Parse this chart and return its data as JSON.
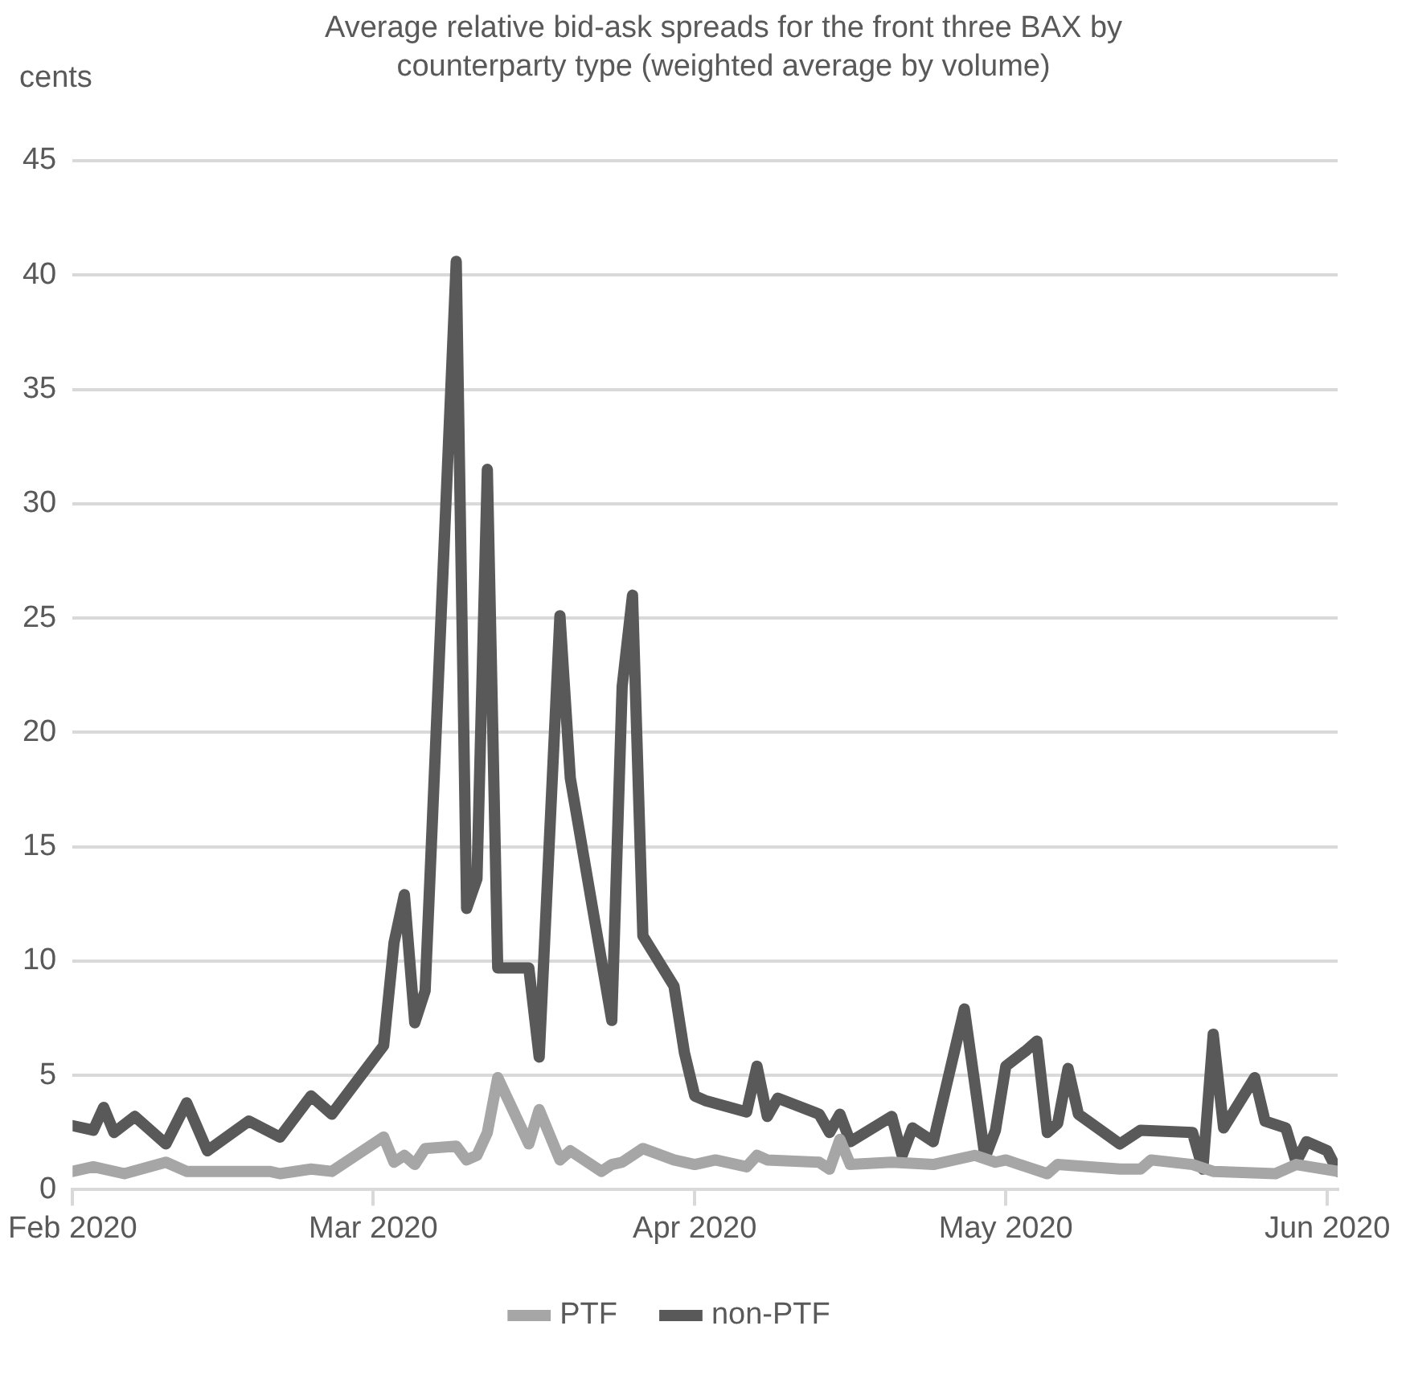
{
  "chart_data": {
    "type": "line",
    "title": "Average relative bid-ask spreads for the front three BAX by counterparty type (weighted average by volume)",
    "ylabel": "cents",
    "xlim": [
      "2020-02-01",
      "2020-06-02"
    ],
    "xticks": [
      {
        "value": "2020-02-01",
        "label": "Feb 2020"
      },
      {
        "value": "2020-03-01",
        "label": "Mar 2020"
      },
      {
        "value": "2020-04-01",
        "label": "Apr 2020"
      },
      {
        "value": "2020-05-01",
        "label": "May 2020"
      },
      {
        "value": "2020-06-01",
        "label": "Jun 2020"
      }
    ],
    "ylim": [
      0,
      45
    ],
    "yticks": [
      0,
      5,
      10,
      15,
      20,
      25,
      30,
      35,
      40,
      45
    ],
    "grid": "y",
    "legend": "bottom",
    "marker": "none",
    "series": [
      {
        "name": "PTF",
        "color": "#a6a6a6",
        "x": [
          "2020-02-01",
          "2020-02-03",
          "2020-02-06",
          "2020-02-10",
          "2020-02-12",
          "2020-02-15",
          "2020-02-20",
          "2020-02-21",
          "2020-02-24",
          "2020-02-26",
          "2020-03-02",
          "2020-03-03",
          "2020-03-04",
          "2020-03-05",
          "2020-03-06",
          "2020-03-09",
          "2020-03-10",
          "2020-03-11",
          "2020-03-12",
          "2020-03-13",
          "2020-03-16",
          "2020-03-17",
          "2020-03-19",
          "2020-03-20",
          "2020-03-23",
          "2020-03-24",
          "2020-03-25",
          "2020-03-27",
          "2020-03-30",
          "2020-04-01",
          "2020-04-03",
          "2020-04-06",
          "2020-04-07",
          "2020-04-08",
          "2020-04-13",
          "2020-04-14",
          "2020-04-15",
          "2020-04-16",
          "2020-04-20",
          "2020-04-24",
          "2020-04-28",
          "2020-04-30",
          "2020-05-01",
          "2020-05-05",
          "2020-05-06",
          "2020-05-12",
          "2020-05-14",
          "2020-05-15",
          "2020-05-19",
          "2020-05-21",
          "2020-05-27",
          "2020-05-29",
          "2020-06-02"
        ],
        "values": [
          0.8,
          1.0,
          0.7,
          1.2,
          0.8,
          0.8,
          0.8,
          0.7,
          0.9,
          0.8,
          2.3,
          1.2,
          1.5,
          1.1,
          1.8,
          1.9,
          1.3,
          1.5,
          2.5,
          4.9,
          2.0,
          3.5,
          1.3,
          1.7,
          0.8,
          1.1,
          1.2,
          1.8,
          1.3,
          1.1,
          1.3,
          1.0,
          1.5,
          1.3,
          1.2,
          0.9,
          2.2,
          1.1,
          1.2,
          1.1,
          1.5,
          1.2,
          1.3,
          0.7,
          1.1,
          0.9,
          0.9,
          1.3,
          1.1,
          0.8,
          0.7,
          1.1,
          0.8
        ]
      },
      {
        "name": "non-PTF",
        "color": "#595959",
        "x": [
          "2020-02-01",
          "2020-02-03",
          "2020-02-04",
          "2020-02-05",
          "2020-02-07",
          "2020-02-10",
          "2020-02-12",
          "2020-02-14",
          "2020-02-18",
          "2020-02-21",
          "2020-02-24",
          "2020-02-26",
          "2020-03-02",
          "2020-03-03",
          "2020-03-04",
          "2020-03-05",
          "2020-03-06",
          "2020-03-09",
          "2020-03-10",
          "2020-03-11",
          "2020-03-12",
          "2020-03-13",
          "2020-03-16",
          "2020-03-17",
          "2020-03-19",
          "2020-03-20",
          "2020-03-24",
          "2020-03-25",
          "2020-03-26",
          "2020-03-27",
          "2020-03-30",
          "2020-03-31",
          "2020-04-01",
          "2020-04-02",
          "2020-04-06",
          "2020-04-07",
          "2020-04-08",
          "2020-04-09",
          "2020-04-13",
          "2020-04-14",
          "2020-04-15",
          "2020-04-16",
          "2020-04-20",
          "2020-04-21",
          "2020-04-22",
          "2020-04-24",
          "2020-04-27",
          "2020-04-29",
          "2020-04-30",
          "2020-05-01",
          "2020-05-03",
          "2020-05-04",
          "2020-05-05",
          "2020-05-06",
          "2020-05-07",
          "2020-05-08",
          "2020-05-12",
          "2020-05-14",
          "2020-05-19",
          "2020-05-20",
          "2020-05-21",
          "2020-05-22",
          "2020-05-25",
          "2020-05-26",
          "2020-05-28",
          "2020-05-29",
          "2020-05-30",
          "2020-06-01",
          "2020-06-02"
        ],
        "values": [
          2.8,
          2.6,
          3.6,
          2.5,
          3.2,
          2.0,
          3.8,
          1.7,
          3.0,
          2.3,
          4.1,
          3.3,
          6.3,
          10.8,
          12.9,
          7.3,
          8.7,
          40.6,
          12.3,
          13.6,
          31.5,
          9.7,
          9.7,
          5.8,
          25.1,
          18.0,
          7.4,
          22.0,
          26.0,
          11.1,
          8.9,
          6.0,
          4.1,
          3.9,
          3.4,
          5.4,
          3.2,
          4.0,
          3.3,
          2.5,
          3.3,
          2.1,
          3.2,
          1.5,
          2.7,
          2.1,
          7.9,
          1.4,
          2.6,
          5.4,
          6.1,
          6.5,
          2.5,
          2.9,
          5.3,
          3.3,
          2.0,
          2.6,
          2.5,
          0.9,
          6.8,
          2.7,
          4.9,
          3.0,
          2.7,
          1.2,
          2.1,
          1.7,
          0.8
        ]
      }
    ]
  }
}
